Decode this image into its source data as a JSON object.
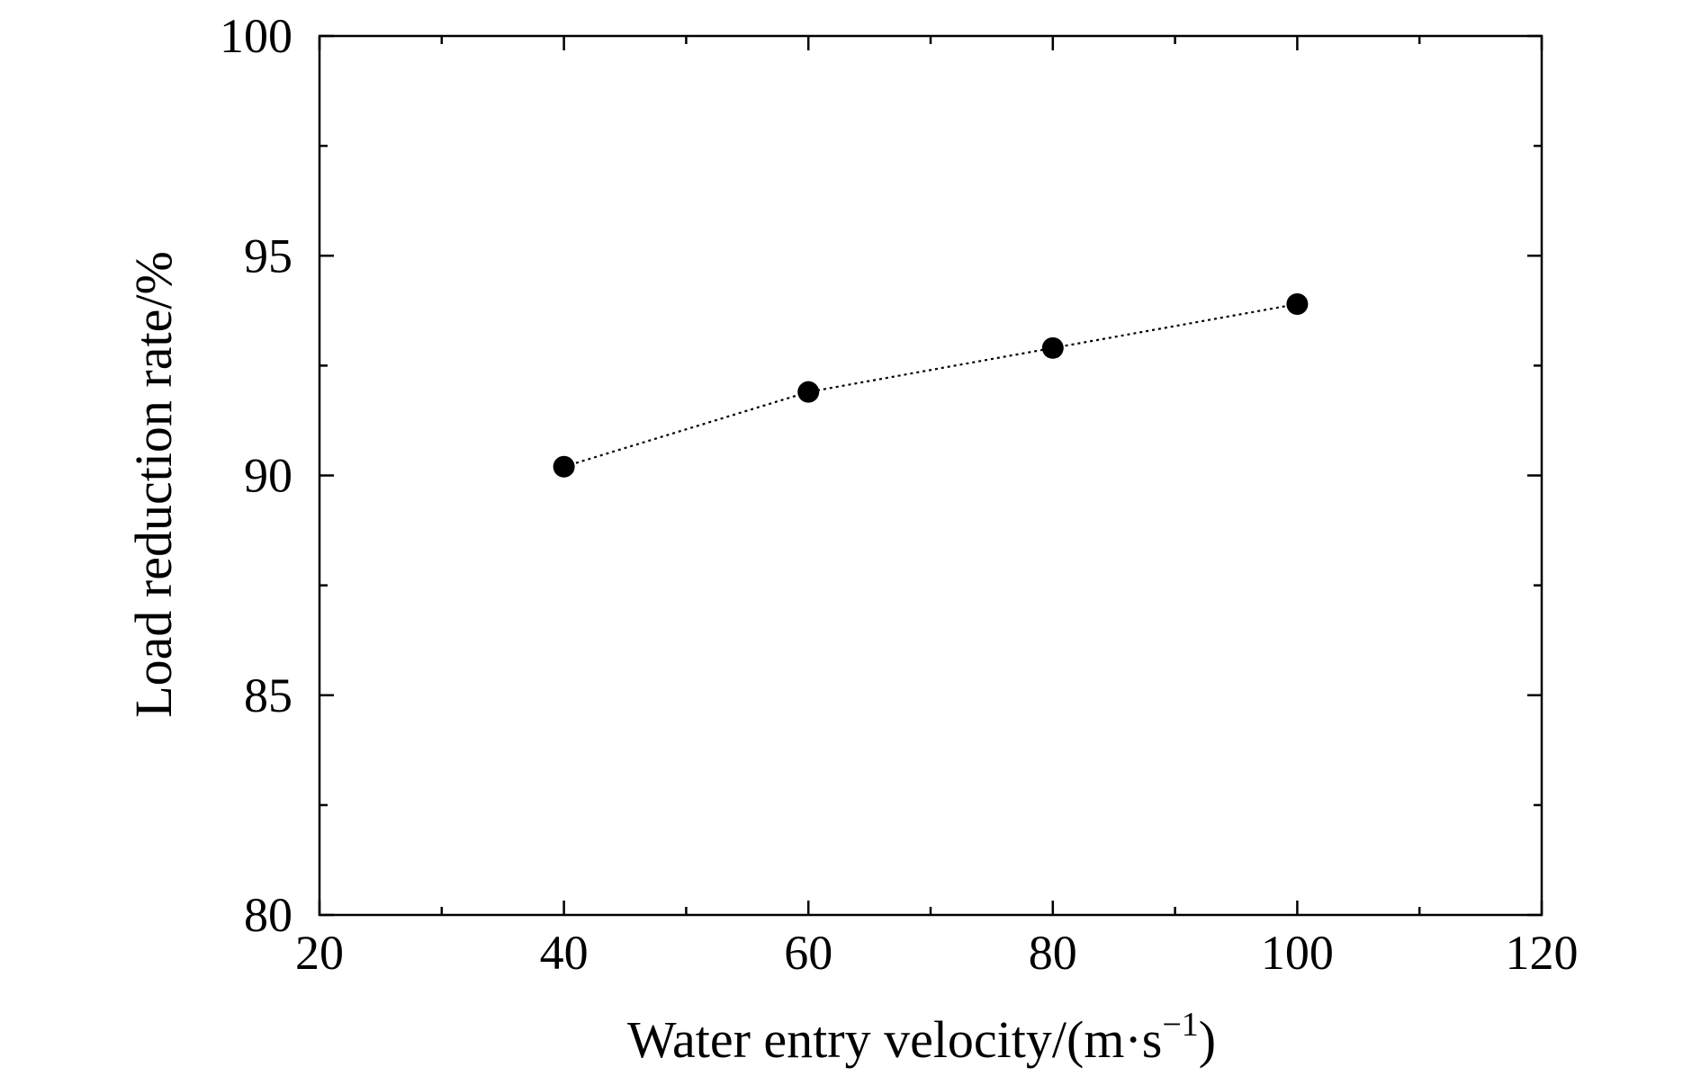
{
  "chart_data": {
    "type": "line",
    "title": "",
    "xlabel": {
      "main": "Water entry velocity/(m·s",
      "superscript": "−1",
      "close": ")"
    },
    "ylabel": "Load reduction rate/%",
    "xlim": [
      20,
      120
    ],
    "ylim": [
      80,
      100
    ],
    "x_ticks": [
      20,
      40,
      60,
      80,
      100,
      120
    ],
    "y_ticks": [
      80,
      85,
      90,
      95,
      100
    ],
    "x_minor_ticks": [
      30,
      50,
      70,
      90,
      110
    ],
    "y_minor_ticks": [
      82.5,
      87.5,
      92.5,
      97.5
    ],
    "grid": false,
    "legend": "none",
    "series": [
      {
        "x": [
          40,
          60,
          80,
          100
        ],
        "y": [
          90.2,
          91.9,
          92.9,
          93.9
        ],
        "marker": "filled-circle",
        "line_style": "dotted",
        "color": "#000000"
      }
    ]
  }
}
